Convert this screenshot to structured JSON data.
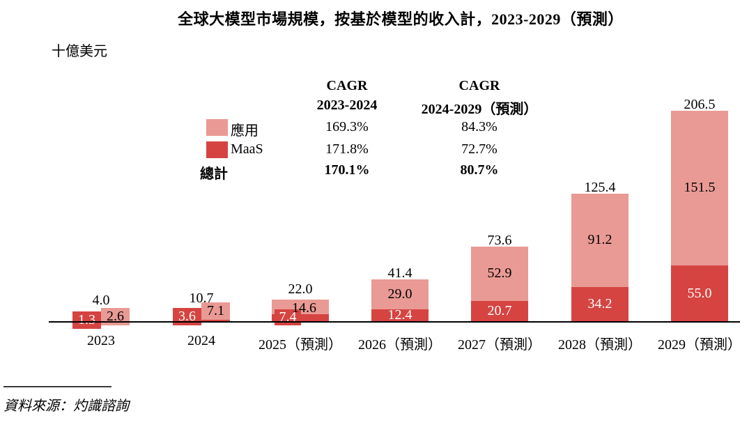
{
  "title": "全球大模型市場規模，按基於模型的收入計，2023-2029（預測）",
  "unit_label": "十億美元",
  "source": "資料來源：灼識諮詢",
  "colors": {
    "app": "#e99a94",
    "maas": "#d54441",
    "axis": "#000000",
    "text": "#000000",
    "inside_dark_text": "#ffffff"
  },
  "legend": {
    "columns": [
      {
        "line1": "CAGR",
        "line2": "2023-2024"
      },
      {
        "line1": "CAGR",
        "line2": "2024-2029（預測）"
      }
    ],
    "rows": [
      {
        "label": "應用",
        "swatch": "app",
        "cagr1": "169.3%",
        "cagr2": "84.3%",
        "bold": false
      },
      {
        "label": "MaaS",
        "swatch": "maas",
        "cagr1": "171.8%",
        "cagr2": "72.7%",
        "bold": false
      },
      {
        "label": "總計",
        "swatch": null,
        "cagr1": "170.1%",
        "cagr2": "80.7%",
        "bold": true
      }
    ]
  },
  "chart_data": {
    "type": "bar",
    "stacked": true,
    "title": "全球大模型市場規模，按基於模型的收入計，2023-2029（預測）",
    "ylabel": "十億美元",
    "xlabel": "",
    "grid": false,
    "legend_position": "top",
    "ylim": [
      0,
      210
    ],
    "categories": [
      "2023",
      "2024",
      "2025（預測）",
      "2026（預測）",
      "2027（預測）",
      "2028（預測）",
      "2029（預測）"
    ],
    "series": [
      {
        "name": "MaaS",
        "color": "#d54441",
        "values": [
          1.3,
          3.6,
          7.4,
          12.4,
          20.7,
          34.2,
          55.0
        ]
      },
      {
        "name": "應用",
        "color": "#e99a94",
        "values": [
          2.6,
          7.1,
          14.6,
          29.0,
          52.9,
          91.2,
          151.5
        ]
      }
    ],
    "totals": [
      4.0,
      10.7,
      22.0,
      41.4,
      73.6,
      125.4,
      206.5
    ],
    "cagr_2023_2024": {
      "應用": "169.3%",
      "MaaS": "171.8%",
      "總計": "170.1%"
    },
    "cagr_2024_2029_forecast": {
      "應用": "84.3%",
      "MaaS": "72.7%",
      "總計": "80.7%"
    }
  }
}
